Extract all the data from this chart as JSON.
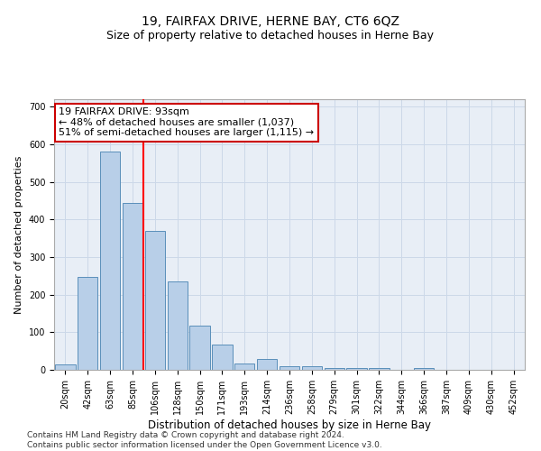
{
  "title1": "19, FAIRFAX DRIVE, HERNE BAY, CT6 6QZ",
  "title2": "Size of property relative to detached houses in Herne Bay",
  "xlabel": "Distribution of detached houses by size in Herne Bay",
  "ylabel": "Number of detached properties",
  "bar_labels": [
    "20sqm",
    "42sqm",
    "63sqm",
    "85sqm",
    "106sqm",
    "128sqm",
    "150sqm",
    "171sqm",
    "193sqm",
    "214sqm",
    "236sqm",
    "258sqm",
    "279sqm",
    "301sqm",
    "322sqm",
    "344sqm",
    "366sqm",
    "387sqm",
    "409sqm",
    "430sqm",
    "452sqm"
  ],
  "bar_values": [
    15,
    248,
    580,
    445,
    370,
    235,
    118,
    68,
    18,
    28,
    10,
    10,
    6,
    5,
    5,
    0,
    5,
    0,
    0,
    0,
    0
  ],
  "bar_color": "#b8cfe8",
  "bar_edge_color": "#5a8fba",
  "red_line_x": 3.5,
  "annotation_text": "19 FAIRFAX DRIVE: 93sqm\n← 48% of detached houses are smaller (1,037)\n51% of semi-detached houses are larger (1,115) →",
  "annotation_box_color": "#ffffff",
  "annotation_box_edge": "#cc0000",
  "ylim": [
    0,
    720
  ],
  "yticks": [
    0,
    100,
    200,
    300,
    400,
    500,
    600,
    700
  ],
  "grid_color": "#ccd8e8",
  "background_color": "#e8eef6",
  "footer1": "Contains HM Land Registry data © Crown copyright and database right 2024.",
  "footer2": "Contains public sector information licensed under the Open Government Licence v3.0.",
  "title1_fontsize": 10,
  "title2_fontsize": 9,
  "xlabel_fontsize": 8.5,
  "ylabel_fontsize": 8,
  "tick_fontsize": 7,
  "annotation_fontsize": 8,
  "footer_fontsize": 6.5
}
